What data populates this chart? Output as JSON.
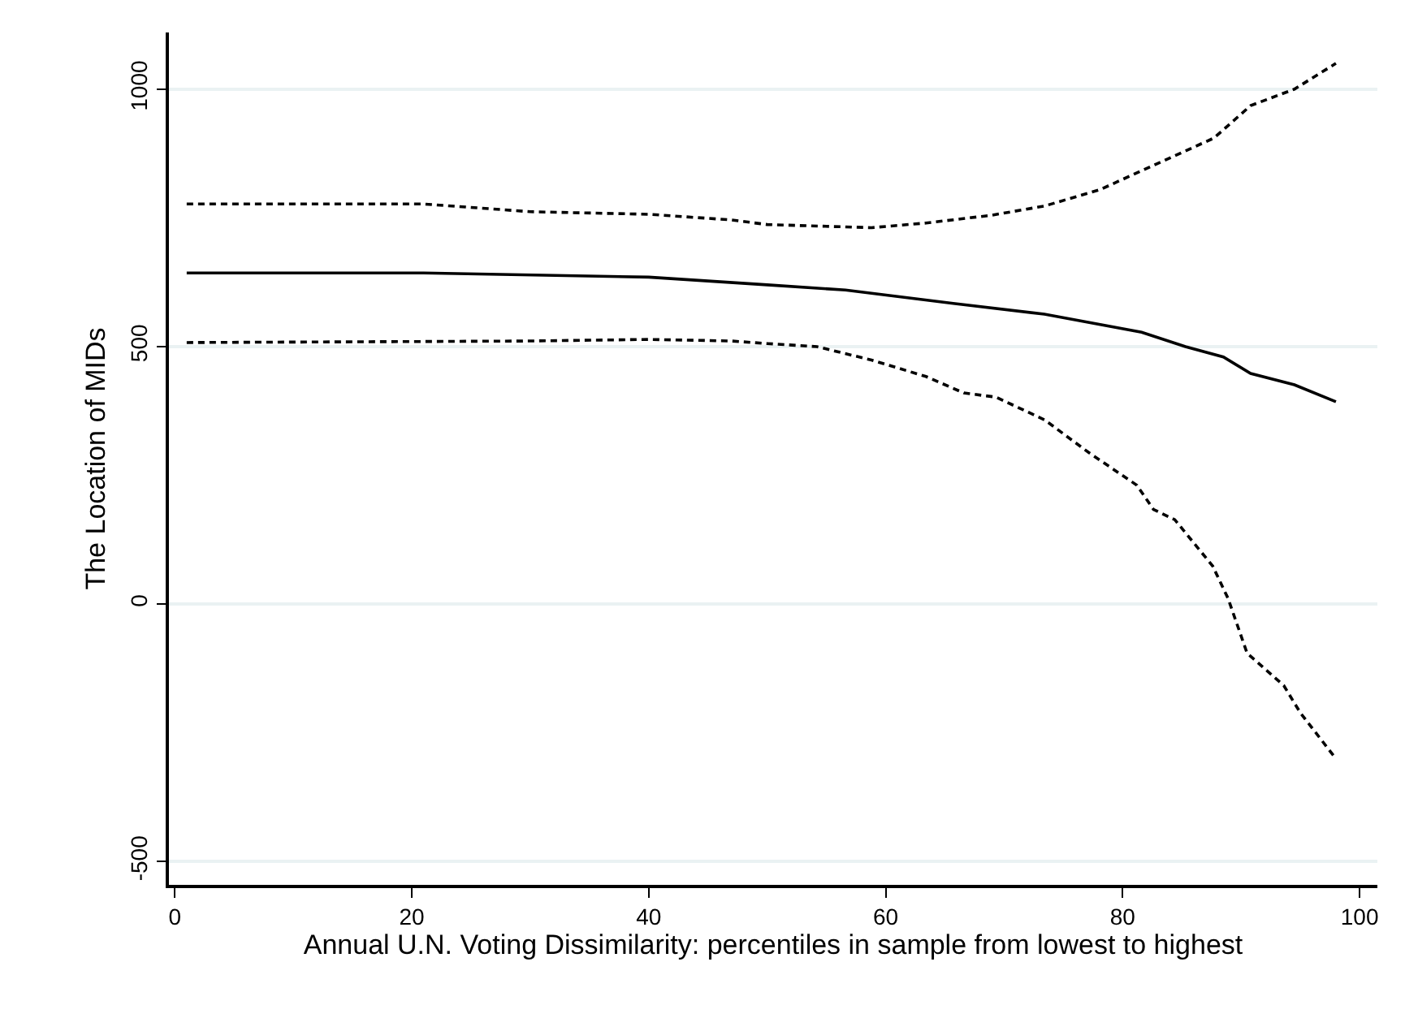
{
  "chart_data": {
    "type": "line",
    "xlabel": "Annual U.N. Voting Dissimilarity: percentiles in sample from lowest to highest",
    "ylabel": "The Location of MIDs",
    "xlim": [
      -0.5,
      101.5
    ],
    "xticks": [
      0,
      20,
      40,
      60,
      80,
      100
    ],
    "ylim": [
      -545,
      1110
    ],
    "yticks": [
      -500,
      0,
      500,
      1000
    ],
    "grid": "y",
    "marker": "none",
    "series": [
      {
        "color": "#000000",
        "line_style": "dashed",
        "x": [
          1,
          21,
          30,
          40,
          47,
          50,
          54.2,
          58.8,
          63.4,
          66.6,
          69.3,
          73.4,
          77.1,
          81.2,
          82.6,
          84.4,
          87.6,
          88.9,
          90.5,
          93.6,
          95,
          98
        ],
        "values": [
          508,
          510,
          511,
          514,
          511,
          506,
          500,
          474,
          442,
          410,
          402,
          358,
          295,
          231,
          184,
          164,
          74,
          11,
          -95,
          -158,
          -211,
          -300
        ]
      },
      {
        "color": "#000000",
        "line_style": "solid",
        "x": [
          1,
          21,
          40,
          50,
          56.6,
          65.7,
          73.4,
          81.6,
          85.3,
          88.5,
          90.8,
          94.5,
          98
        ],
        "values": [
          643,
          643,
          635,
          620,
          610,
          584,
          563,
          528,
          500,
          480,
          448,
          426,
          393
        ]
      },
      {
        "color": "#000000",
        "line_style": "dashed",
        "x": [
          1,
          21,
          30,
          40,
          47,
          50,
          58.8,
          63.4,
          68.9,
          73.4,
          78.1,
          82.6,
          87.7,
          90.8,
          94.5,
          98
        ],
        "values": [
          777,
          777,
          762,
          757,
          746,
          737,
          731,
          740,
          755,
          773,
          805,
          852,
          905,
          968,
          1000,
          1050
        ]
      }
    ]
  }
}
